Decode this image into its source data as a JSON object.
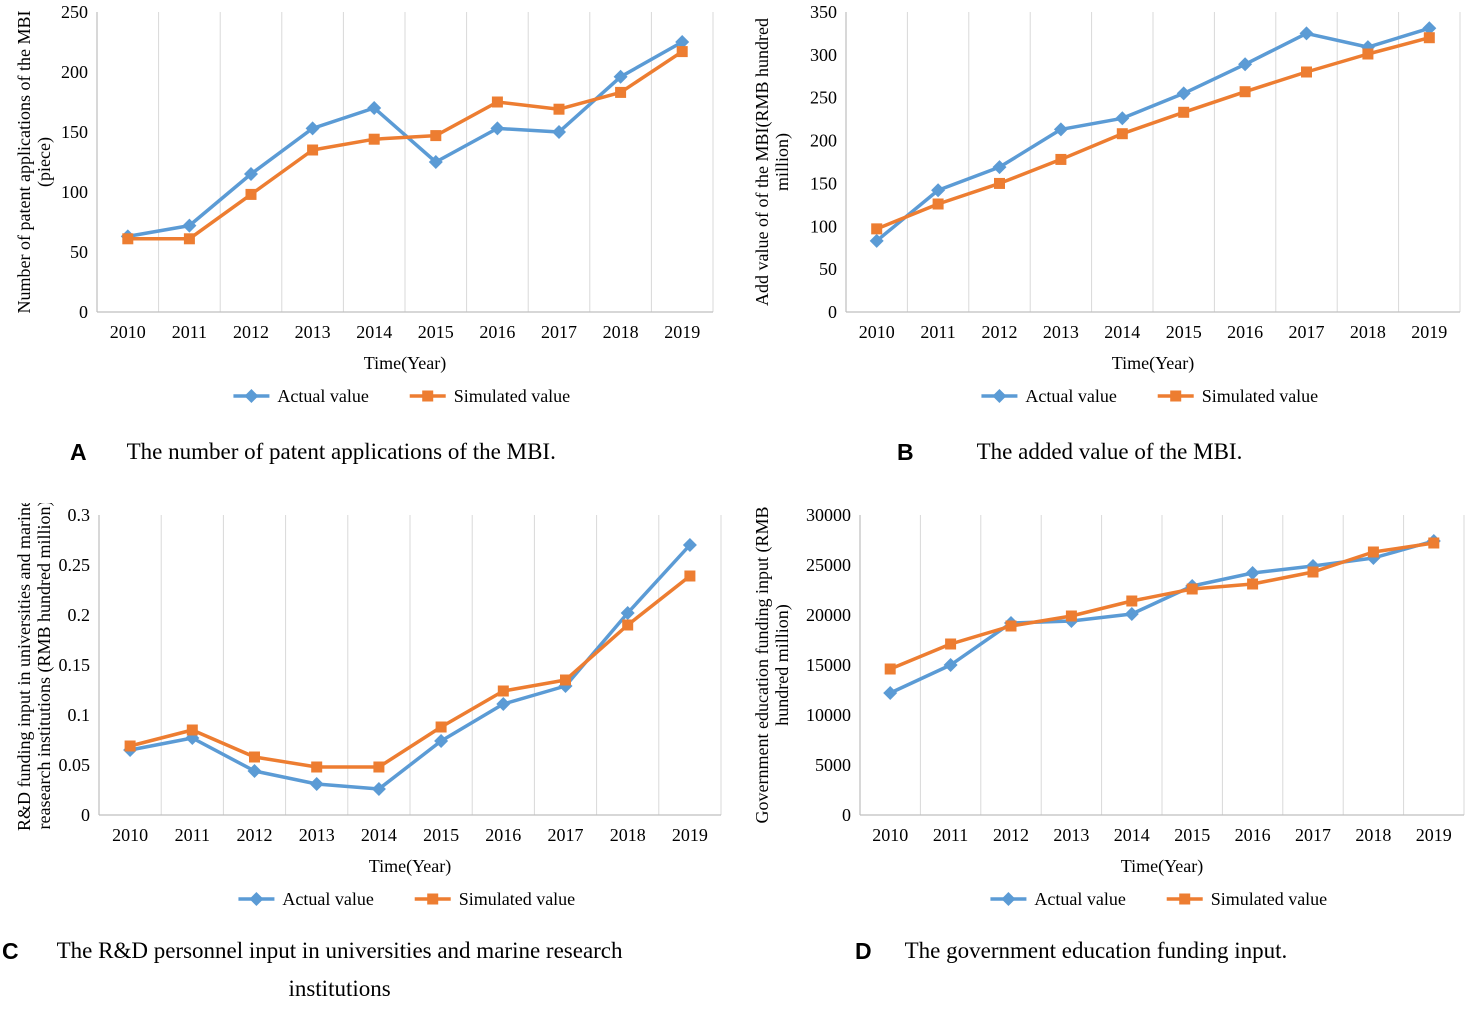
{
  "figure": {
    "colors": {
      "actual": "#5B9BD5",
      "simulated": "#ED7D31",
      "grid": "#D9D9D9",
      "axis": "#BFBFBF",
      "text": "#000000"
    }
  },
  "chart_data": [
    {
      "id": "A",
      "type": "line",
      "panel_label": "A",
      "caption_lines": [
        "The number of patent applications of the MBI."
      ],
      "xlabel": "Time(Year)",
      "ylabel": "Number of patent applications of the MBI (piece)",
      "ylabel_lines": [
        "Number of patent applications of the MBI",
        "(piece)"
      ],
      "categories": [
        "2010",
        "2011",
        "2012",
        "2013",
        "2014",
        "2015",
        "2016",
        "2017",
        "2018",
        "2019"
      ],
      "ylim": [
        0,
        250
      ],
      "ytick_step": 50,
      "grid": "vertical-only",
      "legend_position": "bottom",
      "series": [
        {
          "name": "Actual value",
          "marker": "diamond",
          "color": "#5B9BD5",
          "values": [
            63,
            72,
            115,
            153,
            170,
            125,
            153,
            150,
            196,
            225
          ]
        },
        {
          "name": "Simulated value",
          "marker": "square",
          "color": "#ED7D31",
          "values": [
            61,
            61,
            98,
            135,
            144,
            147,
            175,
            169,
            183,
            217
          ]
        }
      ]
    },
    {
      "id": "B",
      "type": "line",
      "panel_label": "B",
      "caption_lines": [
        "The added value of the MBI."
      ],
      "xlabel": "Time(Year)",
      "ylabel": "Add value of of the MBI(RMB hundred million)",
      "ylabel_lines": [
        "Add value of of the MBI(RMB hundred",
        "million)"
      ],
      "categories": [
        "2010",
        "2011",
        "2012",
        "2013",
        "2014",
        "2015",
        "2016",
        "2017",
        "2018",
        "2019"
      ],
      "ylim": [
        0,
        350
      ],
      "ytick_step": 50,
      "grid": "vertical-only",
      "legend_position": "bottom",
      "series": [
        {
          "name": "Actual value",
          "marker": "diamond",
          "color": "#5B9BD5",
          "values": [
            83,
            142,
            169,
            213,
            226,
            255,
            289,
            325,
            309,
            331
          ]
        },
        {
          "name": "Simulated value",
          "marker": "square",
          "color": "#ED7D31",
          "values": [
            97,
            126,
            150,
            178,
            208,
            233,
            257,
            280,
            301,
            320
          ]
        }
      ]
    },
    {
      "id": "C",
      "type": "line",
      "panel_label": "C",
      "caption_lines": [
        "The  R&D personnel input in universities and marine research",
        "institutions"
      ],
      "xlabel": "Time(Year)",
      "ylabel": "R&D funding input in universities and marine reasearch institutions (RMB hundred million)",
      "ylabel_lines": [
        "R&D funding input in universities and marine",
        "reasearch institutions (RMB hundred million)"
      ],
      "categories": [
        "2010",
        "2011",
        "2012",
        "2013",
        "2014",
        "2015",
        "2016",
        "2017",
        "2018",
        "2019"
      ],
      "ylim": [
        0,
        0.3
      ],
      "ytick_step": 0.05,
      "grid": "vertical-only",
      "legend_position": "bottom",
      "series": [
        {
          "name": "Actual value",
          "marker": "diamond",
          "color": "#5B9BD5",
          "values": [
            0.065,
            0.077,
            0.044,
            0.031,
            0.026,
            0.074,
            0.111,
            0.129,
            0.202,
            0.27
          ]
        },
        {
          "name": "Simulated value",
          "marker": "square",
          "color": "#ED7D31",
          "values": [
            0.069,
            0.085,
            0.058,
            0.048,
            0.048,
            0.088,
            0.124,
            0.135,
            0.19,
            0.239
          ]
        }
      ]
    },
    {
      "id": "D",
      "type": "line",
      "panel_label": "D",
      "caption_lines": [
        "The government education funding input."
      ],
      "xlabel": "Time(Year)",
      "ylabel": "Government education funding input (RMB hundred million)",
      "ylabel_lines": [
        "Government education funding input (RMB",
        "hundred million)"
      ],
      "categories": [
        "2010",
        "2011",
        "2012",
        "2013",
        "2014",
        "2015",
        "2016",
        "2017",
        "2018",
        "2019"
      ],
      "ylim": [
        0,
        30000
      ],
      "ytick_step": 5000,
      "grid": "vertical-only",
      "legend_position": "bottom",
      "series": [
        {
          "name": "Actual value",
          "marker": "diamond",
          "color": "#5B9BD5",
          "values": [
            12200,
            15000,
            19200,
            19400,
            20100,
            22900,
            24200,
            24900,
            25700,
            27400
          ]
        },
        {
          "name": "Simulated value",
          "marker": "square",
          "color": "#ED7D31",
          "values": [
            14600,
            17100,
            18900,
            19900,
            21400,
            22600,
            23100,
            24300,
            26300,
            27200
          ]
        }
      ]
    }
  ]
}
